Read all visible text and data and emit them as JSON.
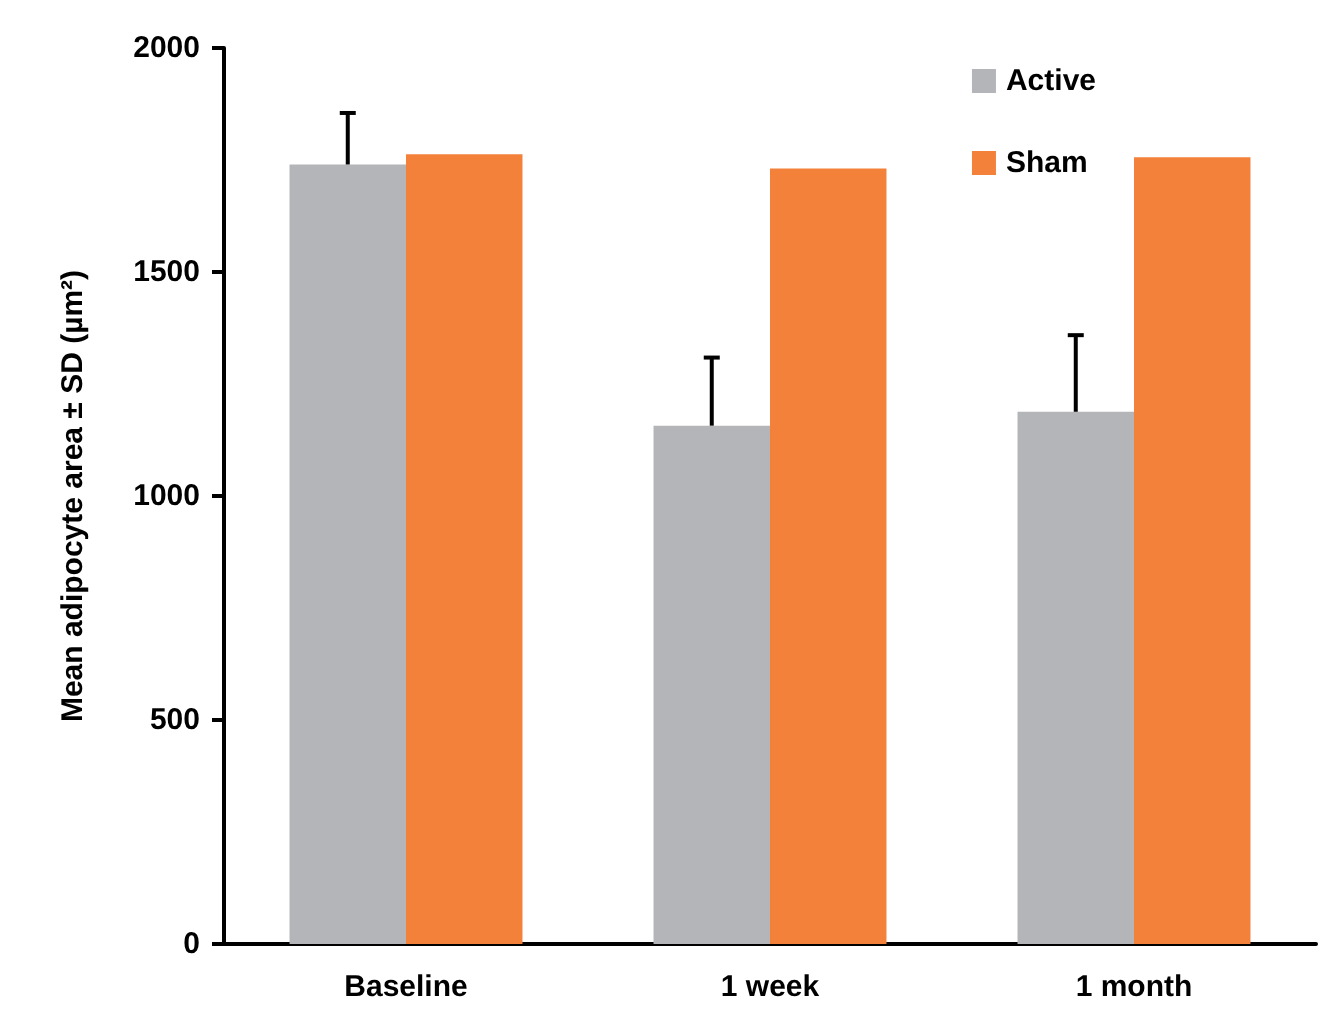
{
  "chart_data": {
    "type": "bar",
    "ylabel": "Mean adipocyte area ± SD (µm²)",
    "categories": [
      "Baseline",
      "1 week",
      "1 month"
    ],
    "series": [
      {
        "name": "Active",
        "color": "#b3b5b8",
        "values": [
          1740,
          1157,
          1188
        ],
        "errors": [
          [
            1740,
            1855
          ],
          [
            1157,
            1309
          ],
          [
            1188,
            1359
          ]
        ]
      },
      {
        "name": "Sham",
        "color": "#f4813a",
        "values": [
          1763,
          1731,
          1756
        ]
      }
    ],
    "ylim": [
      0,
      2000
    ],
    "yticks": [
      0,
      500,
      1000,
      1500,
      2000
    ],
    "grid": false,
    "legend": "top right"
  }
}
